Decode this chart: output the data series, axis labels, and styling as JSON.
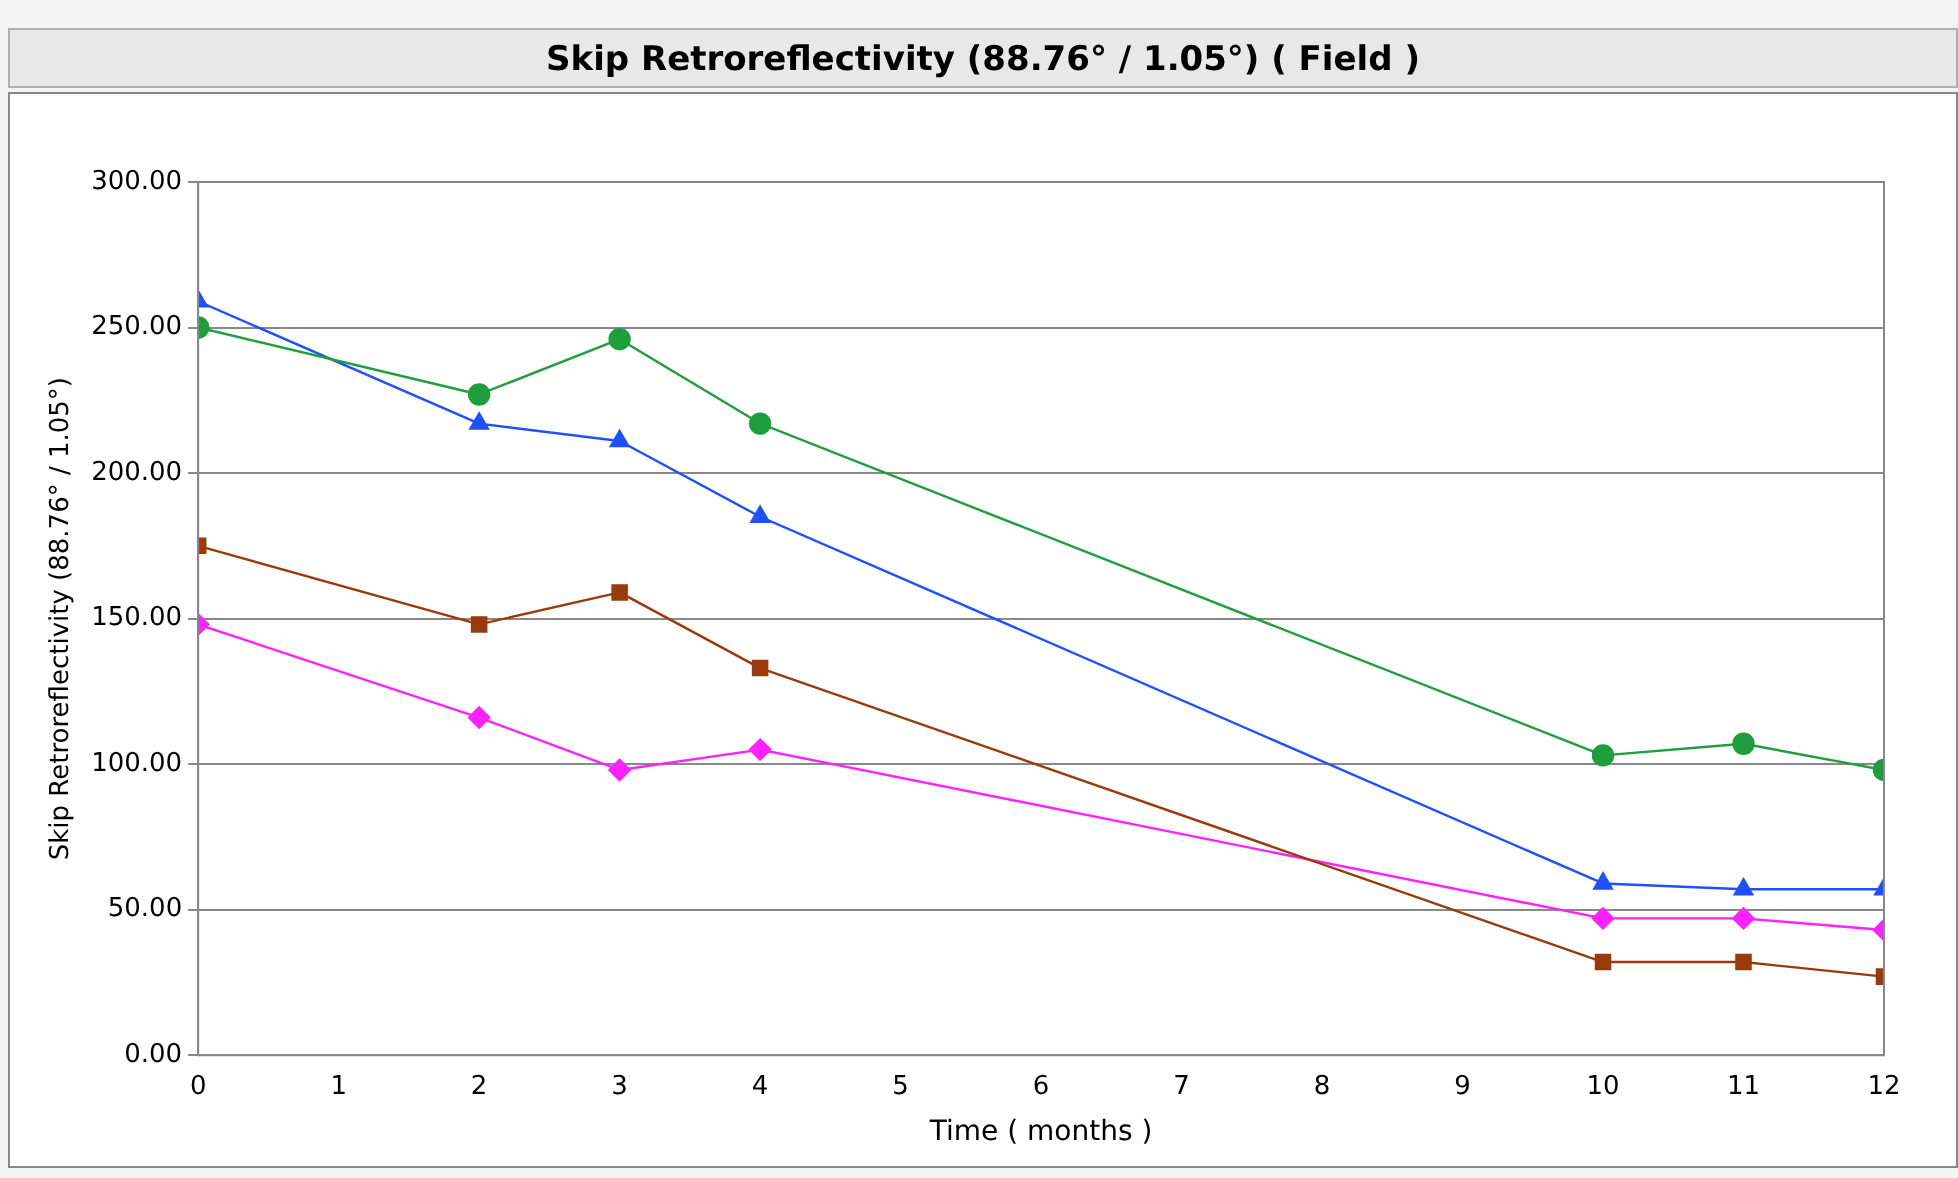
{
  "chart_data": {
    "type": "line",
    "title": "Skip Retroreflectivity (88.76° / 1.05°) ( Field )",
    "xlabel": "Time ( months )",
    "ylabel": "Skip Retroreflectivity (88.76° / 1.05°)",
    "x": [
      0,
      2,
      3,
      4,
      10,
      11,
      12
    ],
    "series": [
      {
        "color": "#1e9e3c",
        "marker": "circle",
        "values": [
          250,
          227,
          246,
          217,
          103,
          107,
          98
        ]
      },
      {
        "color": "#1f4fff",
        "marker": "triangle",
        "values": [
          259,
          217,
          211,
          185,
          59,
          57,
          57
        ]
      },
      {
        "color": "#9a3a0a",
        "marker": "square",
        "values": [
          175,
          148,
          159,
          133,
          32,
          32,
          27
        ]
      },
      {
        "color": "#ff20ff",
        "marker": "diamond",
        "values": [
          148,
          116,
          98,
          105,
          47,
          47,
          43
        ]
      }
    ],
    "xlim": [
      0,
      12
    ],
    "xticks": [
      0,
      1,
      2,
      3,
      4,
      5,
      6,
      7,
      8,
      9,
      10,
      11,
      12
    ],
    "ylim": [
      0,
      300
    ],
    "yticks": [
      {
        "value": 0,
        "label": "0.00"
      },
      {
        "value": 50,
        "label": "50.00"
      },
      {
        "value": 100,
        "label": "100.00"
      },
      {
        "value": 150,
        "label": "150.00"
      },
      {
        "value": 200,
        "label": "200.00"
      },
      {
        "value": 250,
        "label": "250.00"
      },
      {
        "value": 300,
        "label": "300.00"
      }
    ],
    "grid": "y",
    "legend": false,
    "line_style": "solid"
  }
}
